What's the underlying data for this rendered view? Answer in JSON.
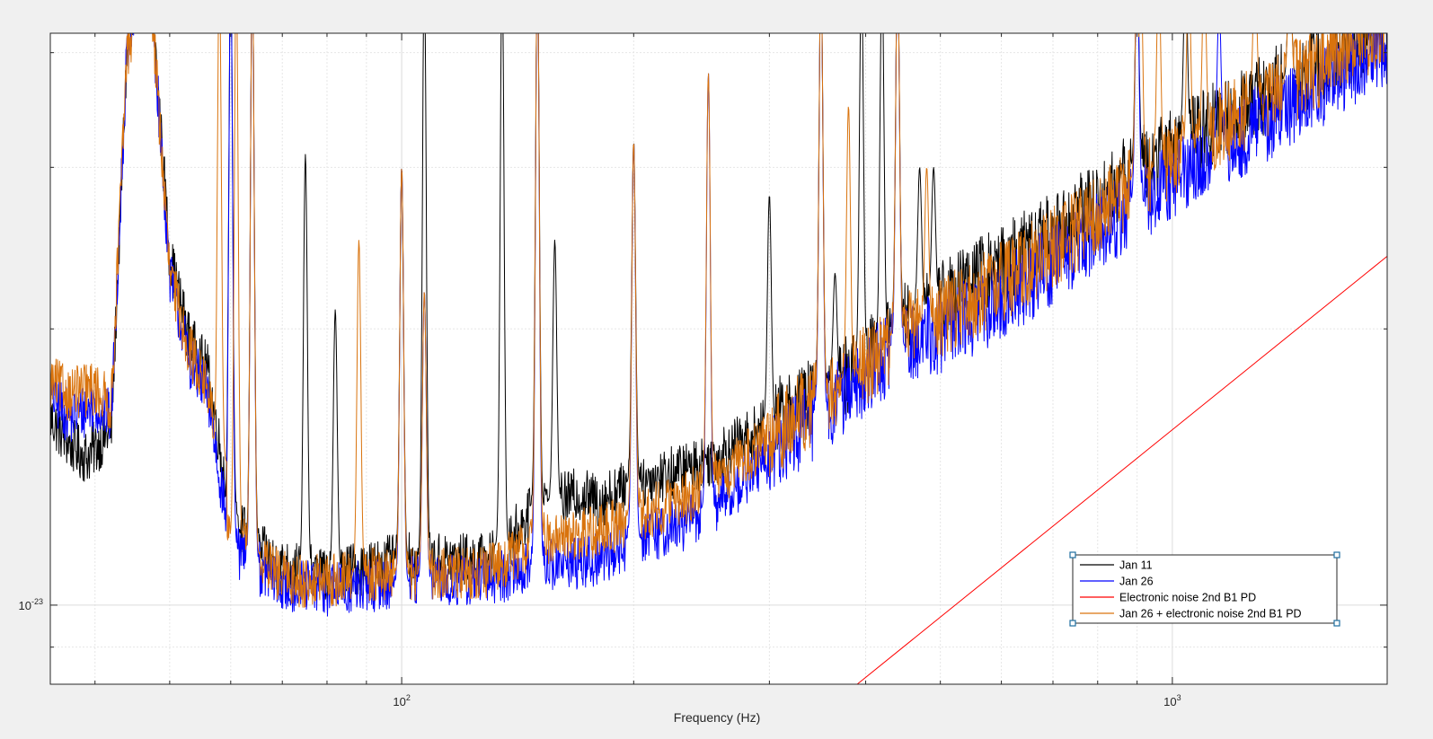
{
  "chart_data": {
    "type": "line",
    "title": "",
    "xlabel": "Frequency (Hz)",
    "ylabel": "",
    "xscale": "log",
    "yscale": "log",
    "xlim": [
      35,
      1900
    ],
    "ylim": [
      8.2e-24,
      4.2e-23
    ],
    "grid": true,
    "minor_grid": true,
    "legend_position": "bottom-right",
    "x_tick_labels": [
      {
        "value": 100,
        "label": "10",
        "exponent": "2"
      },
      {
        "value": 1000,
        "label": "10",
        "exponent": "3"
      }
    ],
    "y_tick_labels": [
      {
        "value": 1e-23,
        "label": "10",
        "exponent": "-23"
      }
    ],
    "series": [
      {
        "name": "Jan 11",
        "color": "#000000",
        "floor": [
          [
            35,
            1.6e-23
          ],
          [
            37,
            1.5e-23
          ],
          [
            39,
            1.45e-23
          ],
          [
            42,
            1.55e-23
          ],
          [
            44,
            4e-23
          ],
          [
            47,
            5e-23
          ],
          [
            50,
            2.4e-23
          ],
          [
            53,
            1.95e-23
          ],
          [
            56,
            1.8e-23
          ],
          [
            60,
            1.25e-23
          ],
          [
            65,
            1.15e-23
          ],
          [
            70,
            1.1e-23
          ],
          [
            80,
            1.08e-23
          ],
          [
            90,
            1.1e-23
          ],
          [
            100,
            1.12e-23
          ],
          [
            115,
            1.12e-23
          ],
          [
            130,
            1.12e-23
          ],
          [
            150,
            1.28e-23
          ],
          [
            170,
            1.32e-23
          ],
          [
            180,
            1.3e-23
          ],
          [
            200,
            1.36e-23
          ],
          [
            230,
            1.4e-23
          ],
          [
            260,
            1.46e-23
          ],
          [
            300,
            1.58e-23
          ],
          [
            350,
            1.7e-23
          ],
          [
            400,
            1.85e-23
          ],
          [
            450,
            2.05e-23
          ],
          [
            500,
            2.15e-23
          ],
          [
            600,
            2.35e-23
          ],
          [
            700,
            2.55e-23
          ],
          [
            800,
            2.75e-23
          ],
          [
            900,
            3e-23
          ],
          [
            1000,
            3.15e-23
          ],
          [
            1200,
            3.45e-23
          ],
          [
            1500,
            3.85e-23
          ],
          [
            1900,
            4.3e-23
          ]
        ],
        "peaks": [
          [
            46,
            5e-23
          ],
          [
            60,
            5e-23
          ],
          [
            64,
            5e-23
          ],
          [
            75,
            3.1e-23
          ],
          [
            82,
            2.1e-23
          ],
          [
            100,
            3e-23
          ],
          [
            107,
            5e-23
          ],
          [
            135,
            5e-23
          ],
          [
            150,
            5e-23
          ],
          [
            158,
            2.5e-23
          ],
          [
            200,
            3.2e-23
          ],
          [
            300,
            2.8e-23
          ],
          [
            350,
            5e-23
          ],
          [
            365,
            2.3e-23
          ],
          [
            395,
            5e-23
          ],
          [
            420,
            5e-23
          ],
          [
            440,
            5e-23
          ],
          [
            470,
            3e-23
          ],
          [
            490,
            3e-23
          ],
          [
            900,
            5e-23
          ],
          [
            1040,
            5e-23
          ],
          [
            1420,
            5e-23
          ]
        ]
      },
      {
        "name": "Jan 26",
        "color": "#0000ff",
        "floor": [
          [
            35,
            1.7e-23
          ],
          [
            37,
            1.6e-23
          ],
          [
            40,
            1.65e-23
          ],
          [
            42,
            1.6e-23
          ],
          [
            44,
            4e-23
          ],
          [
            47,
            5e-23
          ],
          [
            50,
            2.3e-23
          ],
          [
            53,
            1.85e-23
          ],
          [
            56,
            1.7e-23
          ],
          [
            60,
            1.15e-23
          ],
          [
            65,
            1.1e-23
          ],
          [
            70,
            1.05e-23
          ],
          [
            80,
            1.04e-23
          ],
          [
            90,
            1.05e-23
          ],
          [
            100,
            1.06e-23
          ],
          [
            115,
            1.06e-23
          ],
          [
            130,
            1.07e-23
          ],
          [
            150,
            1.1e-23
          ],
          [
            180,
            1.12e-23
          ],
          [
            200,
            1.18e-23
          ],
          [
            230,
            1.22e-23
          ],
          [
            260,
            1.3e-23
          ],
          [
            300,
            1.45e-23
          ],
          [
            350,
            1.62e-23
          ],
          [
            400,
            1.78e-23
          ],
          [
            450,
            1.95e-23
          ],
          [
            500,
            1.98e-23
          ],
          [
            600,
            2.15e-23
          ],
          [
            700,
            2.35e-23
          ],
          [
            800,
            2.55e-23
          ],
          [
            900,
            2.75e-23
          ],
          [
            1000,
            2.9e-23
          ],
          [
            1200,
            3.2e-23
          ],
          [
            1500,
            3.6e-23
          ],
          [
            1900,
            4.1e-23
          ]
        ],
        "peaks": [
          [
            46,
            5e-23
          ],
          [
            60,
            5e-23
          ],
          [
            64,
            5e-23
          ],
          [
            100,
            3e-23
          ],
          [
            107,
            2.2e-23
          ],
          [
            150,
            5e-23
          ],
          [
            200,
            3.2e-23
          ],
          [
            250,
            3.8e-23
          ],
          [
            350,
            5e-23
          ],
          [
            440,
            5e-23
          ],
          [
            900,
            5e-23
          ],
          [
            1150,
            4.5e-23
          ]
        ]
      },
      {
        "name": "Electronic noise 2nd B1 PD",
        "color": "#ff0000",
        "floor": [
          [
            390,
            8.2e-24
          ],
          [
            1900,
            2.4e-23
          ]
        ],
        "peaks": []
      },
      {
        "name": "Jan 26 + electronic noise 2nd B1 PD",
        "color": "#d9730d",
        "floor": [
          [
            35,
            1.75e-23
          ],
          [
            37,
            1.7e-23
          ],
          [
            40,
            1.72e-23
          ],
          [
            42,
            1.65e-23
          ],
          [
            44,
            4e-23
          ],
          [
            47,
            5e-23
          ],
          [
            50,
            2.3e-23
          ],
          [
            53,
            1.9e-23
          ],
          [
            56,
            1.72e-23
          ],
          [
            60,
            1.2e-23
          ],
          [
            65,
            1.12e-23
          ],
          [
            70,
            1.07e-23
          ],
          [
            80,
            1.06e-23
          ],
          [
            90,
            1.08e-23
          ],
          [
            100,
            1.08e-23
          ],
          [
            115,
            1.08e-23
          ],
          [
            130,
            1.09e-23
          ],
          [
            150,
            1.18e-23
          ],
          [
            180,
            1.2e-23
          ],
          [
            200,
            1.25e-23
          ],
          [
            230,
            1.3e-23
          ],
          [
            260,
            1.38e-23
          ],
          [
            300,
            1.52e-23
          ],
          [
            350,
            1.68e-23
          ],
          [
            400,
            1.82e-23
          ],
          [
            450,
            2e-23
          ],
          [
            500,
            2.05e-23
          ],
          [
            600,
            2.25e-23
          ],
          [
            700,
            2.45e-23
          ],
          [
            800,
            2.65e-23
          ],
          [
            900,
            2.9e-23
          ],
          [
            1000,
            3.05e-23
          ],
          [
            1200,
            3.4e-23
          ],
          [
            1500,
            3.8e-23
          ],
          [
            1900,
            4.3e-23
          ]
        ],
        "peaks": [
          [
            46,
            5e-23
          ],
          [
            58,
            5e-23
          ],
          [
            61,
            5e-23
          ],
          [
            64,
            5e-23
          ],
          [
            88,
            2.5e-23
          ],
          [
            100,
            3e-23
          ],
          [
            107,
            2.2e-23
          ],
          [
            150,
            5e-23
          ],
          [
            200,
            3.2e-23
          ],
          [
            250,
            3.8e-23
          ],
          [
            350,
            5e-23
          ],
          [
            380,
            3.5e-23
          ],
          [
            440,
            5e-23
          ],
          [
            480,
            3e-23
          ],
          [
            900,
            5e-23
          ],
          [
            910,
            5e-23
          ],
          [
            960,
            5e-23
          ],
          [
            1050,
            5e-23
          ],
          [
            1100,
            5e-23
          ],
          [
            1280,
            5e-23
          ],
          [
            1420,
            5e-23
          ]
        ]
      }
    ]
  }
}
